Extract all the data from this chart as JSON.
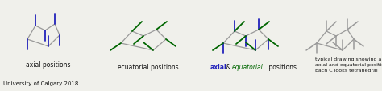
{
  "bg_color": "#f0f0eb",
  "blue": "#2222bb",
  "green": "#006600",
  "gray": "#999999",
  "black": "#111111",
  "title_label1": "axial positions",
  "title_label2": "ecuatorial positions",
  "title_label3_part1": "axial",
  "title_label3_amp": " & ",
  "title_label3_part2": "equatorial",
  "title_label3_end": " positions",
  "title_label4_line1": "typical drawing showing all the",
  "title_label4_line2": "axial and equatorial positions.",
  "title_label4_line3": "Each C looks tetrahedral",
  "footer": "University of Calgary 2018",
  "figw": 4.74,
  "figh": 1.15,
  "dpi": 100
}
